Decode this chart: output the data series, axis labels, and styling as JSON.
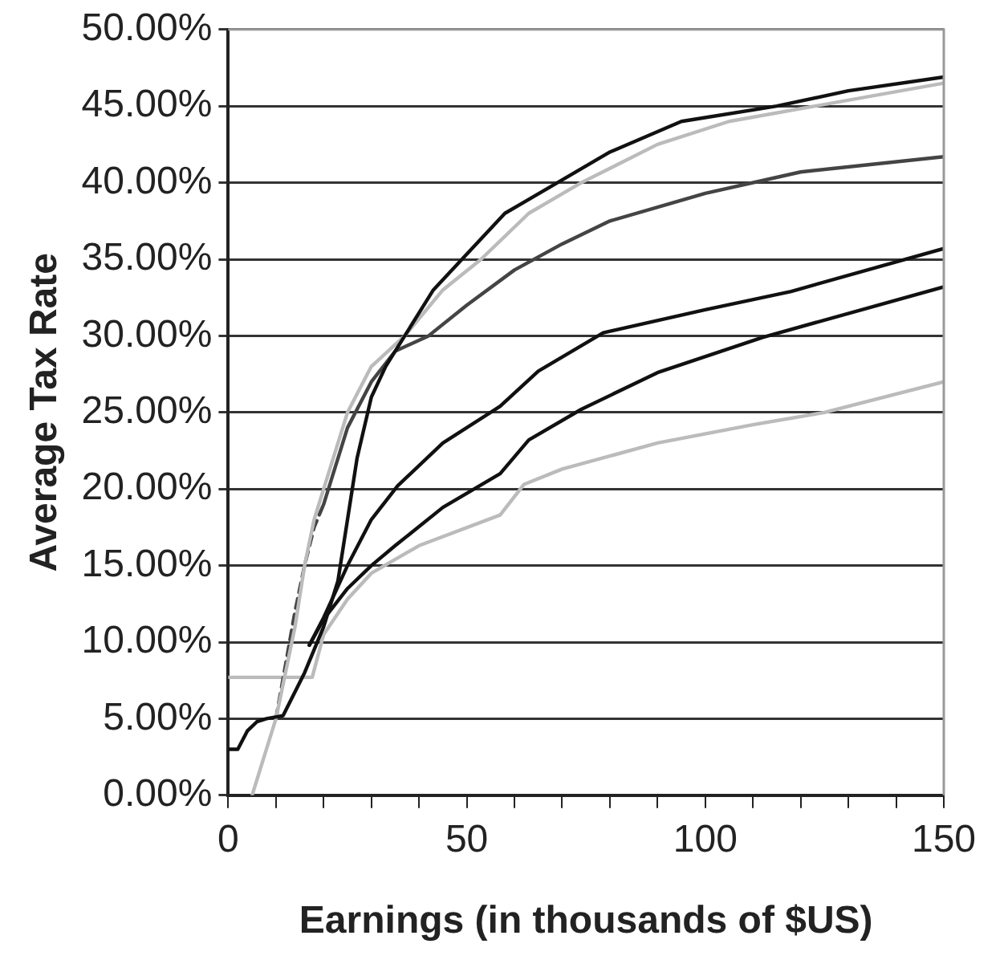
{
  "chart_data": {
    "type": "line",
    "xlabel": "Earnings (in thousands of $US)",
    "ylabel": "Average Tax Rate",
    "xlim": [
      0,
      150
    ],
    "xticks": [
      0,
      {
        "value": 10,
        "label": null
      },
      {
        "value": 20,
        "label": null
      },
      {
        "value": 30,
        "label": null
      },
      {
        "value": 40,
        "label": null
      },
      50,
      {
        "value": 60,
        "label": null
      },
      {
        "value": 70,
        "label": null
      },
      {
        "value": 80,
        "label": null
      },
      {
        "value": 90,
        "label": null
      },
      100,
      {
        "value": 110,
        "label": null
      },
      {
        "value": 120,
        "label": null
      },
      {
        "value": 130,
        "label": null
      },
      {
        "value": 140,
        "label": null
      },
      150
    ],
    "ylim": [
      0,
      50
    ],
    "yticks": [
      {
        "value": 0,
        "label": "0.00%"
      },
      {
        "value": 5,
        "label": "5.00%"
      },
      {
        "value": 10,
        "label": "10.00%"
      },
      {
        "value": 15,
        "label": "15.00%"
      },
      {
        "value": 20,
        "label": "20.00%"
      },
      {
        "value": 25,
        "label": "25.00%"
      },
      {
        "value": 30,
        "label": "30.00%"
      },
      {
        "value": 35,
        "label": "35.00%"
      },
      {
        "value": 40,
        "label": "40.00%"
      },
      {
        "value": 45,
        "label": "45.00%"
      },
      {
        "value": 50,
        "label": "50.00%"
      }
    ],
    "grid": "y",
    "marker": "none",
    "line_style": "solid",
    "series": [
      {
        "color": "#111111",
        "x": [
          0,
          2,
          4,
          6,
          8,
          11.5,
          16,
          20,
          23,
          25,
          27,
          30,
          33,
          37,
          43,
          49,
          58,
          69,
          80,
          95,
          115,
          130,
          150
        ],
        "values": [
          3,
          3,
          4.2,
          4.8,
          5,
          5.2,
          8,
          11,
          14,
          18,
          22,
          26,
          28,
          30,
          33,
          35,
          38,
          40,
          42,
          44,
          45,
          46,
          46.9
        ]
      },
      {
        "color": "#bbbbbb",
        "x": [
          5,
          7,
          10,
          12,
          14,
          16,
          18,
          21,
          25,
          30,
          37,
          45,
          53,
          63,
          74,
          90,
          105,
          123,
          150
        ],
        "values": [
          0,
          2,
          5,
          8,
          11,
          15,
          18,
          21,
          25,
          28,
          30,
          33,
          35,
          38,
          40,
          42.5,
          44,
          45,
          46.5
        ]
      },
      {
        "color": "#444444",
        "line_style": "dashed",
        "x": [
          10,
          12,
          14,
          16,
          18,
          20
        ],
        "values": [
          5,
          8.5,
          12,
          15,
          17.5,
          19
        ]
      },
      {
        "color": "#444444",
        "x": [
          20,
          25,
          30,
          35,
          42,
          50,
          60,
          70,
          80,
          100,
          120,
          150
        ],
        "values": [
          19,
          24,
          27,
          29,
          30,
          32,
          34.3,
          36,
          37.5,
          39.3,
          40.7,
          41.7
        ]
      },
      {
        "color": "#111111",
        "x": [
          17,
          20,
          25,
          30,
          35.5,
          45,
          57,
          65,
          78.6,
          100,
          118,
          150
        ],
        "values": [
          9.8,
          11.6,
          15,
          18,
          20.2,
          23,
          25.4,
          27.7,
          30.2,
          31.7,
          32.9,
          35.7
        ]
      },
      {
        "color": "#111111",
        "x": [
          17,
          20,
          25,
          30,
          35,
          45,
          57,
          63,
          74,
          90,
          112,
          150
        ],
        "values": [
          9.8,
          11.5,
          13.5,
          15,
          16.3,
          18.8,
          21,
          23.2,
          25.2,
          27.6,
          29.9,
          33.2
        ]
      },
      {
        "color": "#bbbbbb",
        "x": [
          0,
          17.6,
          20,
          25,
          30,
          40,
          57,
          62,
          70,
          90,
          110,
          125,
          150
        ],
        "values": [
          7.7,
          7.7,
          10.5,
          12.8,
          14.5,
          16.3,
          18.3,
          20.3,
          21.3,
          23,
          24.2,
          25,
          27
        ]
      }
    ]
  }
}
